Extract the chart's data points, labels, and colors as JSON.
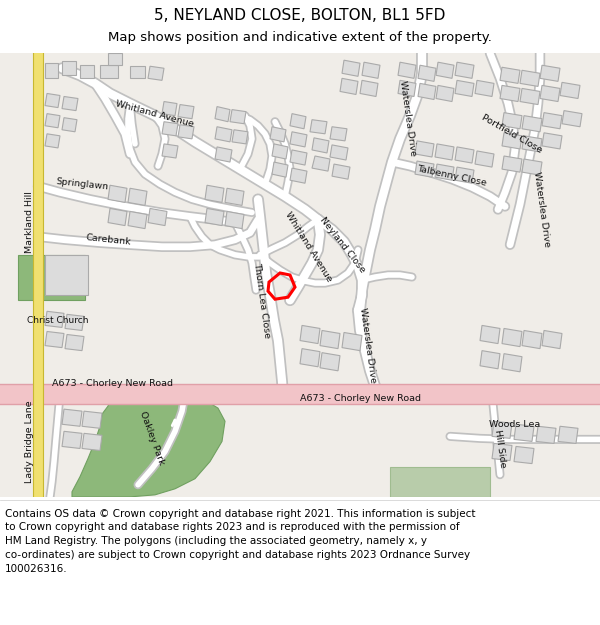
{
  "title": "5, NEYLAND CLOSE, BOLTON, BL1 5FD",
  "subtitle": "Map shows position and indicative extent of the property.",
  "footer_line1": "Contains OS data © Crown copyright and database right 2021. This information is subject",
  "footer_line2": "to Crown copyright and database rights 2023 and is reproduced with the permission of",
  "footer_line3": "HM Land Registry. The polygons (including the associated geometry, namely x, y",
  "footer_line4": "co-ordinates) are subject to Crown copyright and database rights 2023 Ordnance Survey",
  "footer_line5": "100026316.",
  "map_bg": "#f0ede8",
  "road_color": "#ffffff",
  "road_edge_color": "#c8c8c8",
  "a_road_color": "#f2c4c8",
  "a_road_edge_color": "#e0a0a8",
  "yellow_road_color": "#f0e070",
  "building_color": "#dcdcdc",
  "building_edge_color": "#aaaaaa",
  "green_color": "#8db87a",
  "highlight_color": "#ff0000",
  "text_color": "#000000",
  "title_fontsize": 11,
  "subtitle_fontsize": 9.5,
  "footer_fontsize": 7.5
}
